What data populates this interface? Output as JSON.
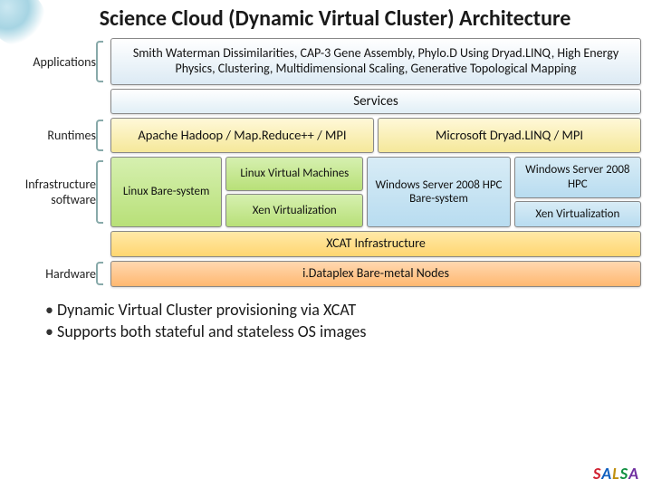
{
  "title": "Science Cloud (Dynamic Virtual Cluster) Architecture",
  "layers": {
    "applications": {
      "label": "Applications",
      "text": "Smith Waterman Dissimilarities, CAP-3 Gene Assembly, Phylo.D Using Dryad.LINQ, High Energy Physics, Clustering, Multidimensional Scaling, Generative Topological Mapping"
    },
    "services": {
      "text": "Services"
    },
    "runtimes": {
      "label": "Runtimes",
      "left": "Apache Hadoop / Map.Reduce++ / MPI",
      "right": "Microsoft Dryad.LINQ / MPI"
    },
    "infrastructure": {
      "label": "Infrastructure software",
      "col1": "Linux Bare-system",
      "col2_top": "Linux Virtual Machines",
      "col2_bot": "Xen Virtualization",
      "col3": "Windows Server 2008 HPC Bare-system",
      "col4_top": "Windows Server 2008 HPC",
      "col4_bot": "Xen Virtualization"
    },
    "xcat": {
      "text": "XCAT Infrastructure"
    },
    "hardware": {
      "label": "Hardware",
      "text": "i.Dataplex Bare-metal Nodes"
    }
  },
  "bullets": [
    "Dynamic Virtual Cluster provisioning via XCAT",
    "Supports both stateful and stateless OS images"
  ],
  "footer_logo": "SALSA",
  "colors": {
    "app_bg": "#dceaf4",
    "runtime_bg": "#f5e89a",
    "infra_green": "#b8e078",
    "infra_blue": "#b8dcf0",
    "xcat_bg": "#ffd670",
    "hw_bg": "#ffb870"
  }
}
